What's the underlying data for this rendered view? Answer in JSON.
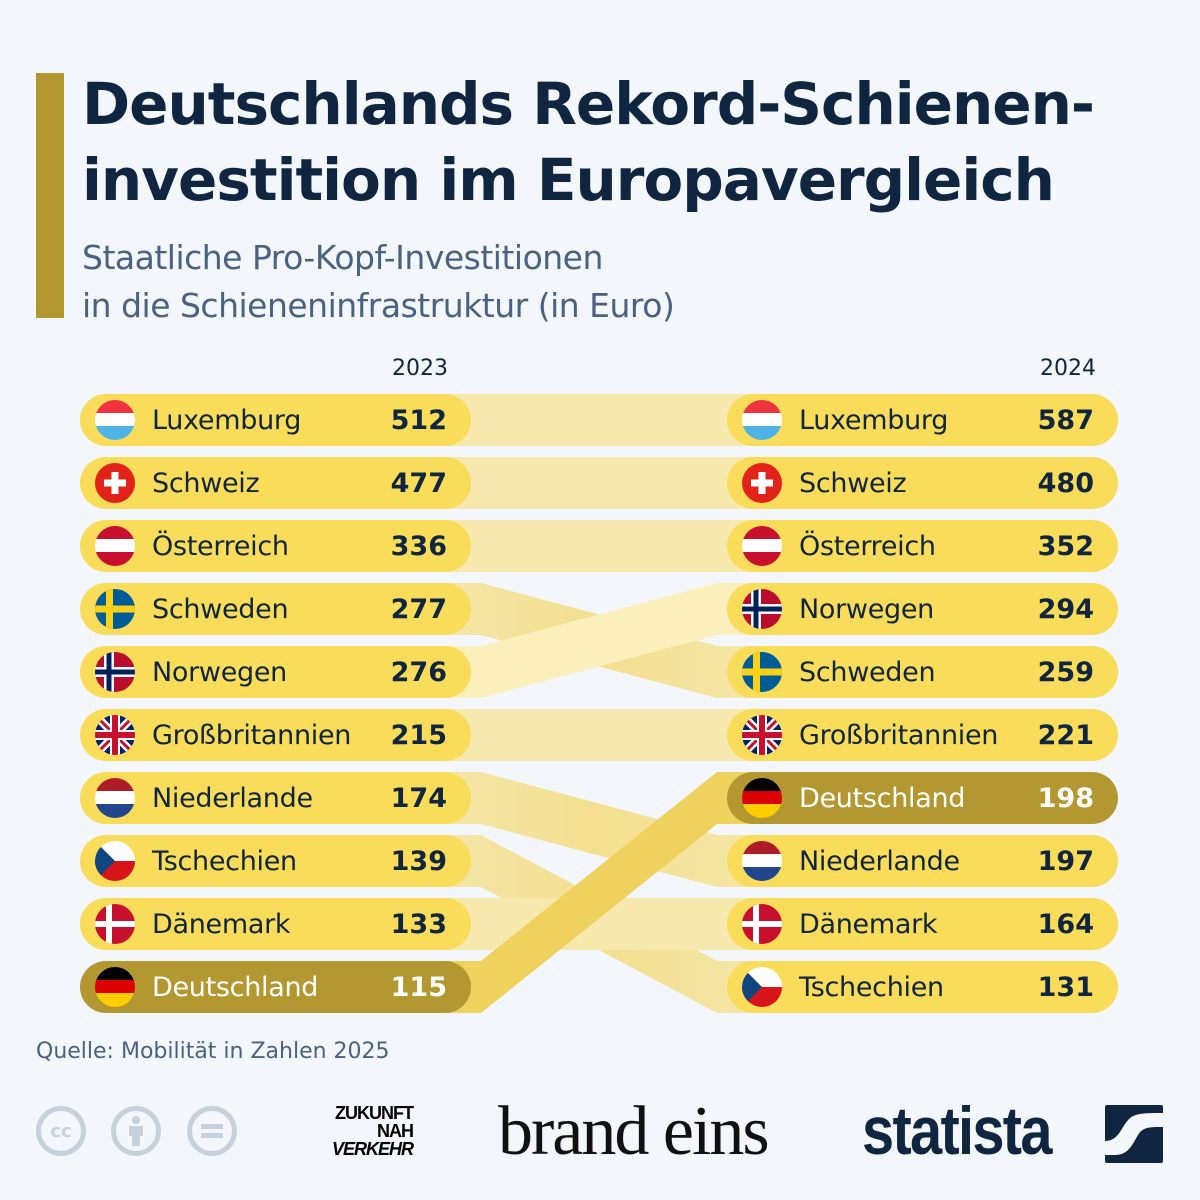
{
  "title_lines": [
    "Deutschlands Rekord-Schienen-",
    "investition im Europavergleich"
  ],
  "subtitle_lines": [
    "Staatliche Pro-Kopf-Investitionen",
    "in die Schieneninfrastruktur (in Euro)"
  ],
  "source": "Quelle: Mobilität in Zahlen 2025",
  "logos": {
    "zukunft": [
      "ZUKUNFT",
      "NAH",
      "VERKEHR"
    ],
    "brandeins": "brand eins",
    "statista": "statista"
  },
  "colors": {
    "pill": "#f8dc5a",
    "highlight": "#b39831",
    "ribbon": "#f5e39a",
    "ribbon_highlight": "#efd15e",
    "text": "#10253f"
  },
  "chart_data": {
    "type": "table",
    "title": "Deutschlands Rekord-Schienen-investition im Europavergleich",
    "subtitle": "Staatliche Pro-Kopf-Investitionen in die Schieneninfrastruktur (in Euro)",
    "unit": "Euro pro Kopf",
    "columns": [
      "2023",
      "2024"
    ],
    "highlight": "Deutschland",
    "ranking_2023": [
      {
        "country": "Luxemburg",
        "flag": "lu",
        "value": 512
      },
      {
        "country": "Schweiz",
        "flag": "ch",
        "value": 477
      },
      {
        "country": "Österreich",
        "flag": "at",
        "value": 336
      },
      {
        "country": "Schweden",
        "flag": "se",
        "value": 277
      },
      {
        "country": "Norwegen",
        "flag": "no",
        "value": 276
      },
      {
        "country": "Großbritannien",
        "flag": "gb",
        "value": 215
      },
      {
        "country": "Niederlande",
        "flag": "nl",
        "value": 174
      },
      {
        "country": "Tschechien",
        "flag": "cz",
        "value": 139
      },
      {
        "country": "Dänemark",
        "flag": "dk",
        "value": 133
      },
      {
        "country": "Deutschland",
        "flag": "de",
        "value": 115
      }
    ],
    "ranking_2024": [
      {
        "country": "Luxemburg",
        "flag": "lu",
        "value": 587
      },
      {
        "country": "Schweiz",
        "flag": "ch",
        "value": 480
      },
      {
        "country": "Österreich",
        "flag": "at",
        "value": 352
      },
      {
        "country": "Norwegen",
        "flag": "no",
        "value": 294
      },
      {
        "country": "Schweden",
        "flag": "se",
        "value": 259
      },
      {
        "country": "Großbritannien",
        "flag": "gb",
        "value": 221
      },
      {
        "country": "Deutschland",
        "flag": "de",
        "value": 198
      },
      {
        "country": "Niederlande",
        "flag": "nl",
        "value": 197
      },
      {
        "country": "Dänemark",
        "flag": "dk",
        "value": 164
      },
      {
        "country": "Tschechien",
        "flag": "cz",
        "value": 131
      }
    ]
  }
}
